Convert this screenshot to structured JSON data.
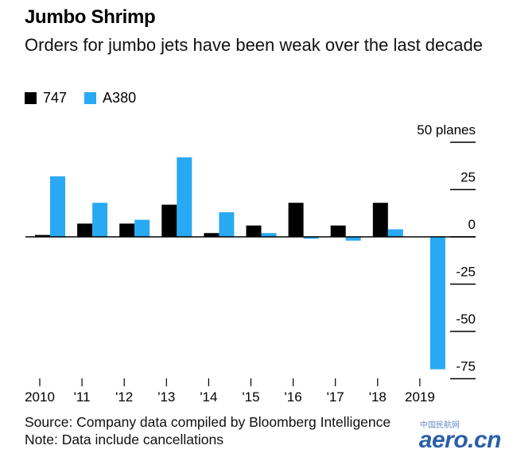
{
  "title": "Jumbo Shrimp",
  "subtitle": "Orders for jumbo jets have been weak over the last decade",
  "footer": {
    "source": "Source: Company data compiled by Bloomberg Intelligence",
    "note": "Note: Data include cancellations"
  },
  "watermark": {
    "text": "aero.cn",
    "sub": "中国民航网"
  },
  "colors": {
    "series_747": "#000000",
    "series_a380": "#29a9f3"
  },
  "chart_data": {
    "type": "bar",
    "categories": [
      "2010",
      "'11",
      "'12",
      "'13",
      "'14",
      "'15",
      "'16",
      "'17",
      "'18",
      "2019"
    ],
    "series": [
      {
        "name": "747",
        "color": "#000000",
        "values": [
          1,
          7,
          7,
          17,
          2,
          6,
          18,
          6,
          18,
          0
        ]
      },
      {
        "name": "A380",
        "color": "#29a9f3",
        "values": [
          32,
          18,
          9,
          42,
          13,
          2,
          -1,
          -2,
          4,
          -70
        ]
      }
    ],
    "ylim": [
      -75,
      50
    ],
    "yticks": [
      50,
      25,
      0,
      -25,
      -50,
      -75
    ],
    "ytick_labels": [
      "50 planes",
      "25",
      "0",
      "-25",
      "-50",
      "-75"
    ],
    "xlabel": "",
    "ylabel": "",
    "legend": "top-left",
    "grid": false
  }
}
